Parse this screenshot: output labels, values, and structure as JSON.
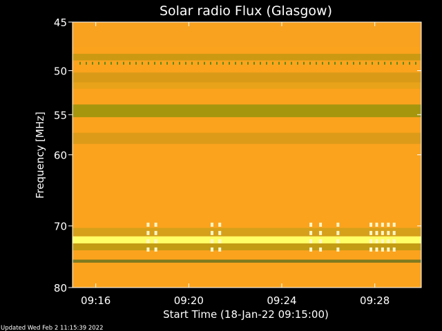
{
  "chart_data": {
    "type": "heatmap",
    "title": "Solar radio Flux (Glasgow)",
    "xlabel": "Start Time (18-Jan-22 09:15:00)",
    "ylabel": "Frequency [MHz]",
    "ylim": [
      45,
      80
    ],
    "y_scale": "log",
    "y_direction": "top-to-bottom",
    "x_start": "09:15:00",
    "x_end": "09:30:00",
    "x_ticks": [
      "09:16",
      "09:20",
      "09:24",
      "09:28"
    ],
    "y_ticks": [
      45,
      50,
      55,
      60,
      70,
      80
    ],
    "grid": false,
    "legend": "none",
    "background_color": "#fba31d",
    "bands": [
      {
        "f_low": 45.0,
        "f_high": 47.5,
        "color": "#f8a220"
      },
      {
        "f_low": 48.2,
        "f_high": 48.9,
        "color": "#cc9a12"
      },
      {
        "f_low": 50.2,
        "f_high": 51.3,
        "color": "#d99a18"
      },
      {
        "f_low": 51.3,
        "f_high": 52.0,
        "color": "#e8a31a"
      },
      {
        "f_low": 53.8,
        "f_high": 55.3,
        "color": "#a6960e"
      },
      {
        "f_low": 57.2,
        "f_high": 58.6,
        "color": "#dc9b18"
      },
      {
        "f_low": 70.3,
        "f_high": 71.6,
        "color": "#d6a01a"
      },
      {
        "f_low": 71.6,
        "f_high": 72.7,
        "color": "#ffff66"
      },
      {
        "f_low": 72.7,
        "f_high": 73.8,
        "color": "#c39c14"
      },
      {
        "f_low": 75.3,
        "f_high": 75.8,
        "color": "#7e7a20"
      }
    ],
    "spike_times": [
      "09:18:15",
      "09:18:35",
      "09:21:00",
      "09:21:20",
      "09:25:15",
      "09:25:40",
      "09:26:25",
      "09:27:50",
      "09:28:05",
      "09:28:20",
      "09:28:35",
      "09:28:50"
    ],
    "spike_freq_range": [
      69.5,
      74.5
    ],
    "spike_color": "#fff6c8",
    "dotted_line_freq": 49.2,
    "dotted_line_color": "#5e8a1a"
  },
  "footer": {
    "updated_text": "Updated Wed Feb  2 11:15:39 2022"
  }
}
